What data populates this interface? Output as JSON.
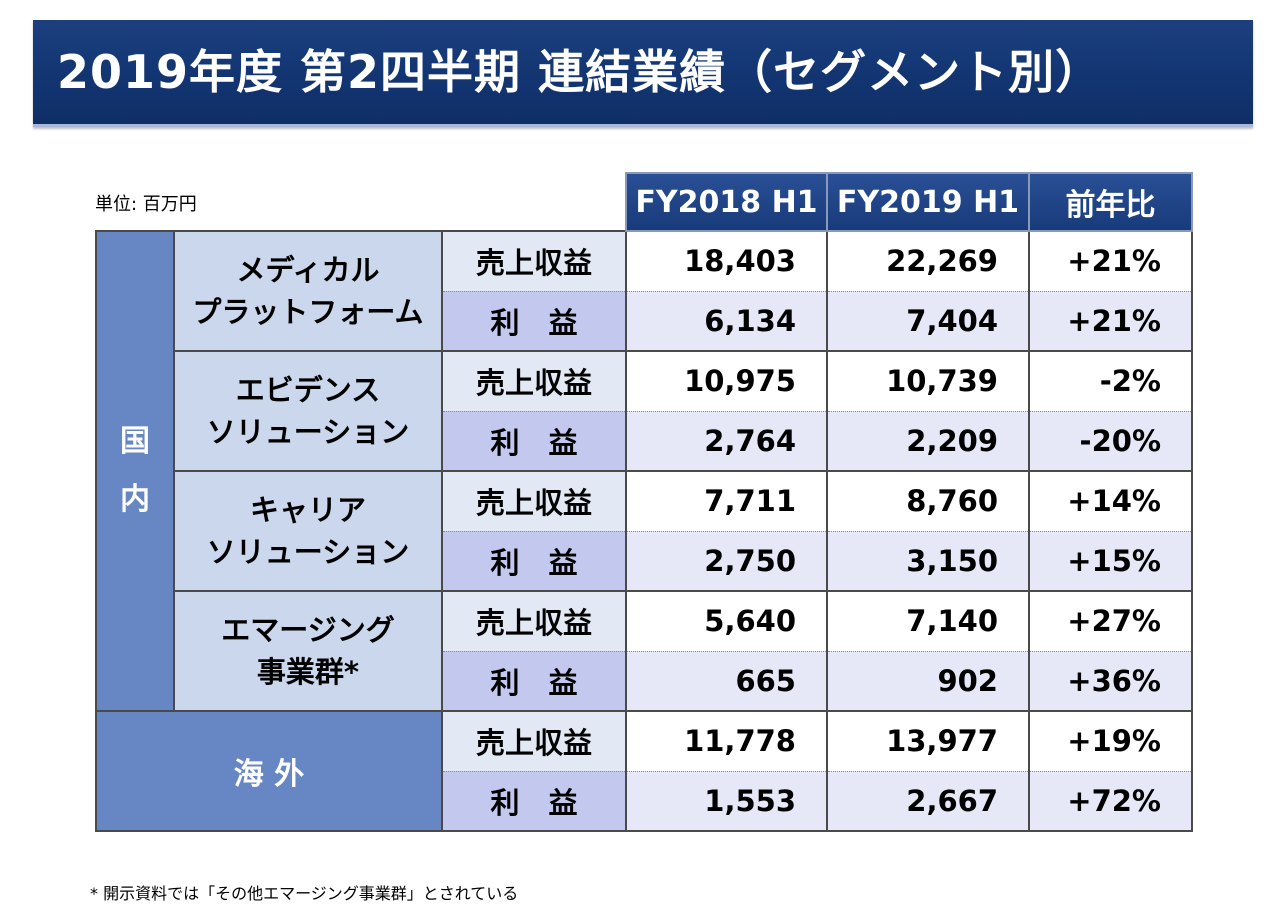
{
  "title": "2019年度 第2四半期 連結業績（セグメント別）",
  "unit_label": "単位: 百万円",
  "columns": [
    "FY2018 H1",
    "FY2019 H1",
    "前年比"
  ],
  "metrics": {
    "revenue": "売上収益",
    "profit": "利　益"
  },
  "regions": {
    "domestic": "国\n内",
    "overseas": "海 外"
  },
  "segments": [
    {
      "name": "メディカル\nプラットフォーム",
      "revenue": [
        "18,403",
        "22,269",
        "+21%"
      ],
      "profit": [
        "6,134",
        "7,404",
        "+21%"
      ]
    },
    {
      "name": "エビデンス\nソリューション",
      "revenue": [
        "10,975",
        "10,739",
        "-2%"
      ],
      "profit": [
        "2,764",
        "2,209",
        "-20%"
      ]
    },
    {
      "name": "キャリア\nソリューション",
      "revenue": [
        "7,711",
        "8,760",
        "+14%"
      ],
      "profit": [
        "2,750",
        "3,150",
        "+15%"
      ]
    },
    {
      "name": "エマージング\n事業群*",
      "revenue": [
        "5,640",
        "7,140",
        "+27%"
      ],
      "profit": [
        "665",
        "902",
        "+36%"
      ]
    }
  ],
  "overseas": {
    "revenue": [
      "11,778",
      "13,977",
      "+19%"
    ],
    "profit": [
      "1,553",
      "2,667",
      "+72%"
    ]
  },
  "footnote": "* 開示資料では「その他エマージング事業群」とされている",
  "colors": {
    "title_bg": "#123572",
    "header_bg": "#173b7a",
    "region_bg": "#6786c4",
    "segment_bg": "#cbd7ec",
    "profit_label_bg": "#c3c8ef",
    "profit_row_bg": "#e6e8f8"
  }
}
